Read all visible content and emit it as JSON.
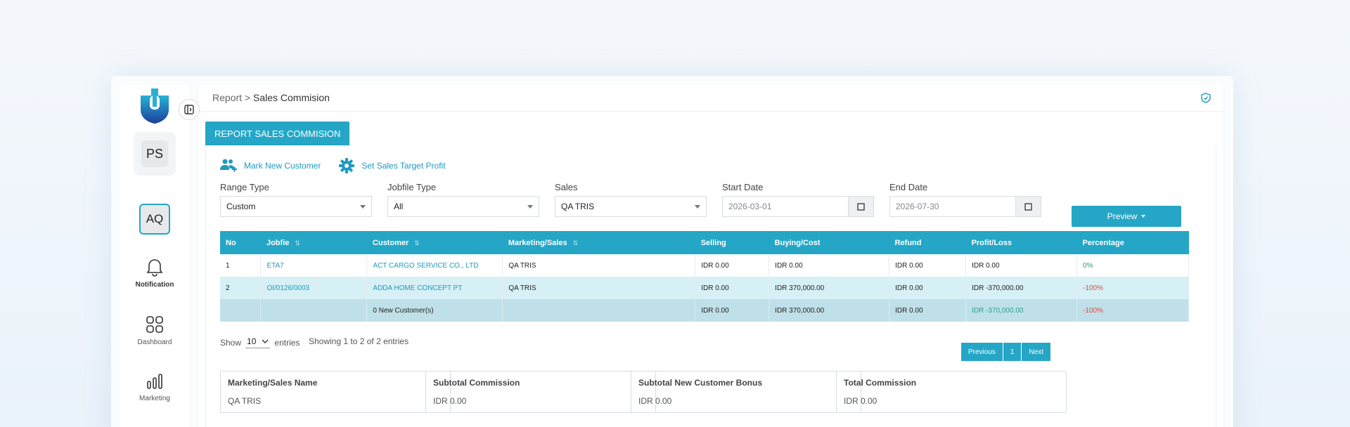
{
  "sidebar": {
    "user_initials": "PS",
    "workspace_initials": "AQ",
    "items": [
      {
        "label": "Notification",
        "icon": "bell-icon"
      },
      {
        "label": "Dashboard",
        "icon": "grid-icon"
      },
      {
        "label": "Marketing",
        "icon": "bar-chart-icon"
      }
    ]
  },
  "breadcrumb": {
    "parent": "Report",
    "separator": ">",
    "current": "Sales Commision"
  },
  "tab_label": "REPORT SALES COMMISION",
  "actions": {
    "mark_new_customer": "Mark New Customer",
    "set_sales_target": "Set Sales Target Profit"
  },
  "filters": {
    "range_type": {
      "label": "Range Type",
      "value": "Custom"
    },
    "jobfile_type": {
      "label": "Jobfile Type",
      "value": "All"
    },
    "sales": {
      "label": "Sales",
      "value": "QA TRIS"
    },
    "start_date": {
      "label": "Start Date",
      "placeholder": "2026-03-01"
    },
    "end_date": {
      "label": "End Date",
      "placeholder": "2026-07-30"
    }
  },
  "preview_label": "Preview",
  "table": {
    "headers": [
      "No",
      "Jobfie",
      "Customer",
      "Marketing/Sales",
      "Selling",
      "Buying/Cost",
      "Refund",
      "Profit/Loss",
      "Percentage"
    ],
    "rows": [
      {
        "no": "1",
        "jobfile": "ETA7",
        "customer": "ACT CARGO SERVICE CO., LTD",
        "sales": "QA TRIS",
        "selling": "IDR 0.00",
        "buying": "IDR 0.00",
        "refund": "IDR 0.00",
        "profit": "IDR 0.00",
        "percentage": "0%"
      },
      {
        "no": "2",
        "jobfile": "OI/0126/0003",
        "customer": "ADDA HOME CONCEPT PT",
        "sales": "QA TRIS",
        "selling": "IDR 0.00",
        "buying": "IDR 370,000.00",
        "refund": "IDR 0.00",
        "profit": "IDR -370,000.00",
        "percentage": "-100%"
      }
    ],
    "total": {
      "customer": "0 New Customer(s)",
      "selling": "IDR 0.00",
      "buying": "IDR 370,000.00",
      "refund": "IDR 0.00",
      "profit": "IDR -370,000.00",
      "percentage": "-100%"
    }
  },
  "show_entries": {
    "prefix": "Show",
    "value": "10",
    "suffix": "entries",
    "info": "Showing 1 to 2 of 2 entries"
  },
  "pagination": {
    "previous": "Previous",
    "page": "1",
    "next": "Next"
  },
  "summary": [
    {
      "title": "Marketing/Sales Name",
      "value": "QA TRIS"
    },
    {
      "title": "Subtotal Commission",
      "value": "IDR 0.00"
    },
    {
      "title": "Subtotal New Customer Bonus",
      "value": "IDR 0.00"
    },
    {
      "title": "Total Commission",
      "value": "IDR 0.00"
    }
  ],
  "colors": {
    "accent": "#25a6c6",
    "positive": "#2d9a6a",
    "negative": "#e0483a",
    "row_highlight": "#d6f0f5",
    "total_row": "#bfe0e8"
  }
}
